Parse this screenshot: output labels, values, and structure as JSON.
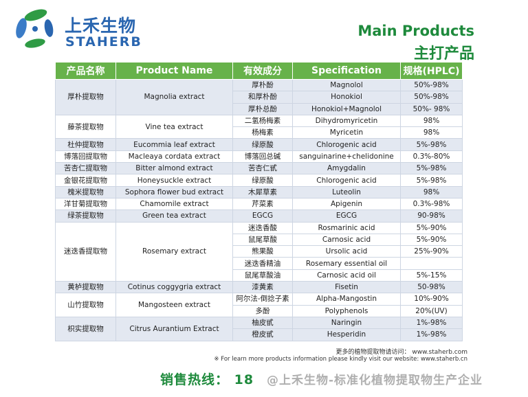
{
  "brand": {
    "name_cn": "上禾生物",
    "name_en": "STAHERB"
  },
  "title": {
    "en": "Main Products",
    "cn": "主打产品"
  },
  "headers": [
    "产品名称",
    "Product Name",
    "有效成分",
    "Specification",
    "规格(HPLC)"
  ],
  "groups": [
    {
      "cn": "厚朴提取物",
      "en": "Magnolia extract",
      "rows": [
        {
          "ing": "厚朴酚",
          "spec": "Magnolol",
          "hplc": "50%-98%"
        },
        {
          "ing": "和厚朴酚",
          "spec": "Honokiol",
          "hplc": "50%-98%"
        },
        {
          "ing": "厚朴总酚",
          "spec": "Honokiol+Magnolol",
          "hplc": "50%- 98%"
        }
      ]
    },
    {
      "cn": "藤茶提取物",
      "en": "Vine tea extract",
      "rows": [
        {
          "ing": "二氢杨梅素",
          "spec": "Dihydromyricetin",
          "hplc": "98%"
        },
        {
          "ing": "杨梅素",
          "spec": "Myricetin",
          "hplc": "98%"
        }
      ]
    },
    {
      "cn": "杜仲提取物",
      "en": "Eucommia leaf extract",
      "rows": [
        {
          "ing": "绿原酸",
          "spec": "Chlorogenic acid",
          "hplc": "5%-98%"
        }
      ]
    },
    {
      "cn": "博落回提取物",
      "en": "Macleaya cordata extract",
      "rows": [
        {
          "ing": "博落回总碱",
          "spec": "sanguinarine+chelidonine",
          "hplc": "0.3%-80%"
        }
      ]
    },
    {
      "cn": "苦杏仁提取物",
      "en": "Bitter almond extract",
      "rows": [
        {
          "ing": "苦杏仁甙",
          "spec": "Amygdalin",
          "hplc": "5%-98%"
        }
      ]
    },
    {
      "cn": "金银花提取物",
      "en": "Honeysuckle extract",
      "rows": [
        {
          "ing": "绿原酸",
          "spec": "Chlorogenic acid",
          "hplc": "5%-98%"
        }
      ]
    },
    {
      "cn": "槐米提取物",
      "en": "Sophora flower bud extract",
      "rows": [
        {
          "ing": "木犀草素",
          "spec": "Luteolin",
          "hplc": "98%"
        }
      ]
    },
    {
      "cn": "洋甘菊提取物",
      "en": "Chamomile extract",
      "rows": [
        {
          "ing": "芹菜素",
          "spec": "Apigenin",
          "hplc": "0.3%-98%"
        }
      ]
    },
    {
      "cn": "绿茶提取物",
      "en": "Green tea extract",
      "rows": [
        {
          "ing": "EGCG",
          "spec": "EGCG",
          "hplc": "90-98%"
        }
      ]
    },
    {
      "cn": "迷迭香提取物",
      "en": "Rosemary extract",
      "rows": [
        {
          "ing": "迷迭香酸",
          "spec": "Rosmarinic acid",
          "hplc": "5%-90%"
        },
        {
          "ing": "鼠尾草酸",
          "spec": "Carnosic acid",
          "hplc": "5%-90%"
        },
        {
          "ing": "熊果酸",
          "spec": "Ursolic acid",
          "hplc": "25%-90%"
        },
        {
          "ing": "迷迭香精油",
          "spec": "Rosemary essential oil",
          "hplc": ""
        },
        {
          "ing": "鼠尾草酸油",
          "spec": "Carnosic acid oil",
          "hplc": "5%-15%"
        }
      ]
    },
    {
      "cn": "黄栌提取物",
      "en": "Cotinus coggygria  extract",
      "rows": [
        {
          "ing": "漆黄素",
          "spec": "Fisetin",
          "hplc": "50-98%"
        }
      ]
    },
    {
      "cn": "山竹提取物",
      "en": "Mangosteen extract",
      "rows": [
        {
          "ing": "阿尔法-倒捻子素",
          "spec": "Alpha-Mangostin",
          "hplc": "10%-90%"
        },
        {
          "ing": "多酚",
          "spec": "Polyphenols",
          "hplc": "20%(UV)"
        }
      ]
    },
    {
      "cn": "枳实提取物",
      "en": "Citrus Aurantium Extract",
      "rows": [
        {
          "ing": "柚皮甙",
          "spec": "Naringin",
          "hplc": "1%-98%"
        },
        {
          "ing": "橙皮甙",
          "spec": "Hesperidin",
          "hplc": "1%-98%"
        }
      ]
    }
  ],
  "footer": {
    "more_cn": "更多的植物提取物请访问：  www.staherb.com",
    "more_en": "※ For learn more products information please kindly visit our website: www.staherb.cn",
    "hotline": "销售热线： 18",
    "watermark": "@上禾生物-标准化植物提取物生产企业"
  },
  "colors": {
    "header_green": "#67b24a",
    "title_green": "#1e8a3c",
    "brand_blue": "#2a66b0",
    "row_shade": "#e3e8f1"
  }
}
